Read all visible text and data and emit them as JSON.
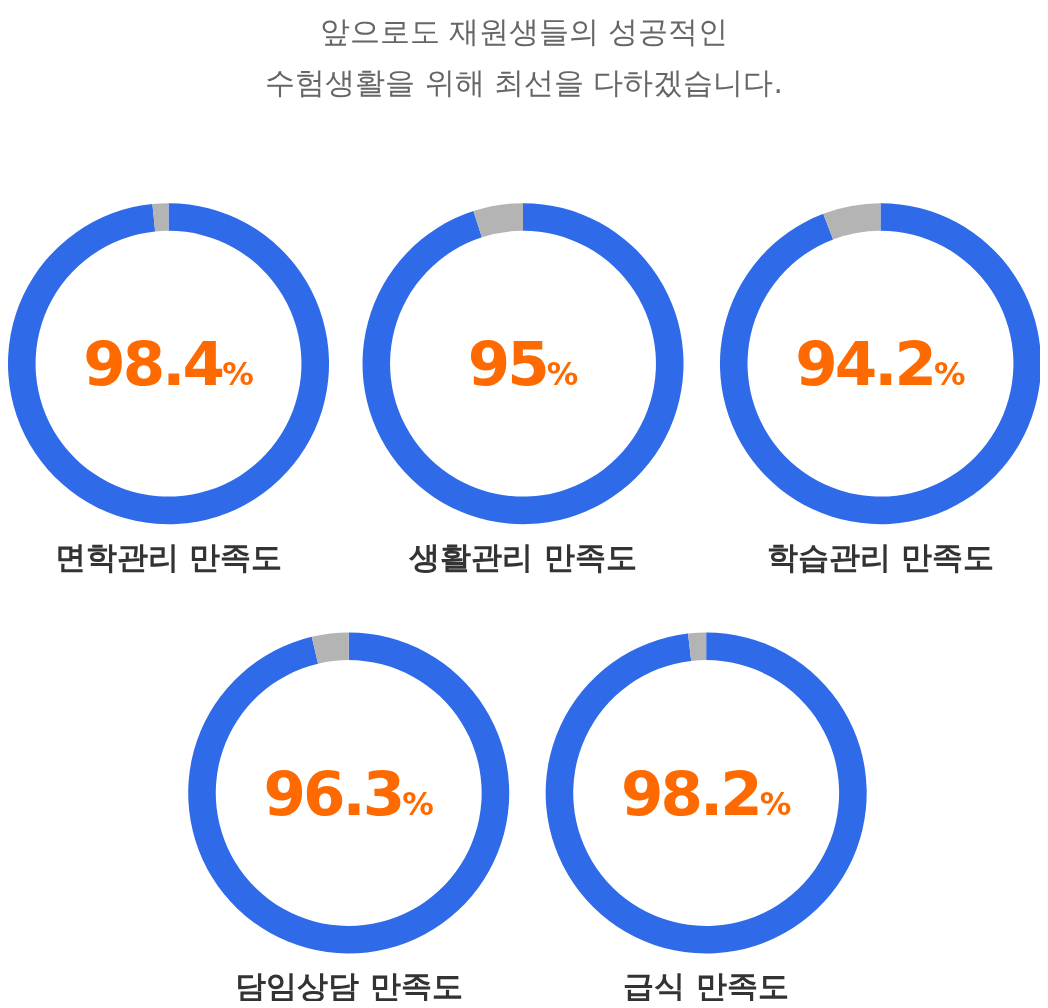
{
  "chart_data": [
    {
      "type": "other",
      "title": "앞으로도 재원생들의 성공적인 수험생활을 위해 최선을 다하겠습니다."
    },
    {
      "type": "donut",
      "title": "면학관리 만족도",
      "categories": [
        null,
        null
      ],
      "values": [
        98.4,
        1.6
      ],
      "colors": [
        "#2f6be8",
        "#b4b4b4"
      ],
      "value_labels": [
        "98.4%",
        null
      ]
    },
    {
      "type": "donut",
      "title": "생활관리 만족도",
      "categories": [
        null,
        null
      ],
      "values": [
        95,
        5
      ],
      "colors": [
        "#2f6be8",
        "#b4b4b4"
      ],
      "value_labels": [
        "95%",
        null
      ]
    },
    {
      "type": "donut",
      "title": "학습관리 만족도",
      "categories": [
        null,
        null
      ],
      "values": [
        94.2,
        5.8
      ],
      "colors": [
        "#2f6be8",
        "#b4b4b4"
      ],
      "value_labels": [
        "94.2%",
        null
      ]
    },
    {
      "type": "donut",
      "title": "담임상담 만족도",
      "categories": [
        null,
        null
      ],
      "values": [
        96.3,
        3.7
      ],
      "colors": [
        "#2f6be8",
        "#b4b4b4"
      ],
      "value_labels": [
        "96.3%",
        null
      ]
    },
    {
      "type": "donut",
      "title": "급식 만족도",
      "categories": [
        null,
        null
      ],
      "values": [
        98.2,
        1.8
      ],
      "colors": [
        "#2f6be8",
        "#b4b4b4"
      ],
      "value_labels": [
        "98.2%",
        null
      ]
    }
  ]
}
